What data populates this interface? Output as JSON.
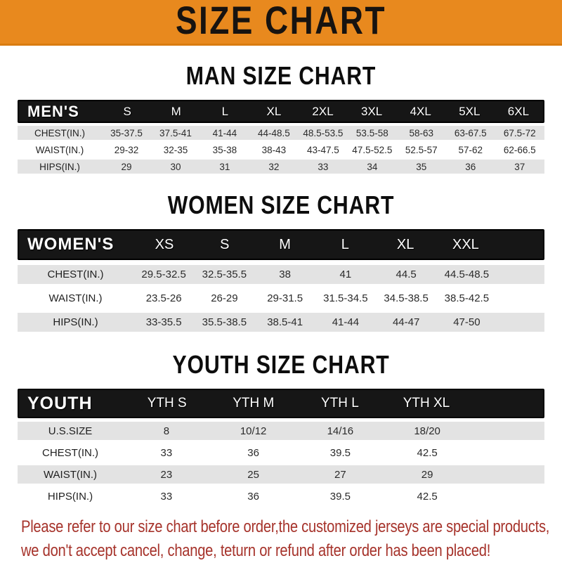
{
  "banner": {
    "title": "SIZE CHART",
    "bg_color": "#E8891E",
    "text_color": "#171310"
  },
  "colors": {
    "header_bar": "#161616",
    "stripe_row": "#E3E3E3",
    "table_text": "#2b2b2b"
  },
  "sections": [
    {
      "id": "men",
      "heading": "MAN SIZE CHART",
      "table": {
        "label": "MEN'S",
        "columns": [
          "S",
          "M",
          "L",
          "XL",
          "2XL",
          "3XL",
          "4XL",
          "5XL",
          "6XL"
        ],
        "rows": [
          {
            "label": "CHEST(IN.)",
            "values": [
              "35-37.5",
              "37.5-41",
              "41-44",
              "44-48.5",
              "48.5-53.5",
              "53.5-58",
              "58-63",
              "63-67.5",
              "67.5-72"
            ]
          },
          {
            "label": "WAIST(IN.)",
            "values": [
              "29-32",
              "32-35",
              "35-38",
              "38-43",
              "43-47.5",
              "47.5-52.5",
              "52.5-57",
              "57-62",
              "62-66.5"
            ]
          },
          {
            "label": "HIPS(IN.)",
            "values": [
              "29",
              "30",
              "31",
              "32",
              "33",
              "34",
              "35",
              "36",
              "37"
            ]
          }
        ]
      }
    },
    {
      "id": "women",
      "heading": "WOMEN SIZE CHART",
      "table": {
        "label": "WOMEN'S",
        "columns": [
          "XS",
          "S",
          "M",
          "L",
          "XL",
          "XXL"
        ],
        "rows": [
          {
            "label": "CHEST(IN.)",
            "values": [
              "29.5-32.5",
              "32.5-35.5",
              "38",
              "41",
              "44.5",
              "44.5-48.5"
            ]
          },
          {
            "label": "WAIST(IN.)",
            "values": [
              "23.5-26",
              "26-29",
              "29-31.5",
              "31.5-34.5",
              "34.5-38.5",
              "38.5-42.5"
            ]
          },
          {
            "label": "HIPS(IN.)",
            "values": [
              "33-35.5",
              "35.5-38.5",
              "38.5-41",
              "41-44",
              "44-47",
              "47-50"
            ]
          }
        ]
      }
    },
    {
      "id": "youth",
      "heading": "YOUTH SIZE CHART",
      "table": {
        "label": "YOUTH",
        "columns": [
          "YTH S",
          "YTH M",
          "YTH L",
          "YTH XL"
        ],
        "rows": [
          {
            "label": "U.S.SIZE",
            "values": [
              "8",
              "10/12",
              "14/16",
              "18/20"
            ]
          },
          {
            "label": "CHEST(IN.)",
            "values": [
              "33",
              "36",
              "39.5",
              "42.5"
            ]
          },
          {
            "label": "WAIST(IN.)",
            "values": [
              "23",
              "25",
              "27",
              "29"
            ]
          },
          {
            "label": "HIPS(IN.)",
            "values": [
              "33",
              "36",
              "39.5",
              "42.5"
            ]
          }
        ]
      }
    }
  ],
  "disclaimer": {
    "color": "#A6332B",
    "lines": [
      "Please refer to our size chart before order,the customized jerseys are special products,",
      "we don't accept cancel, change, teturn or refund after order has been placed!"
    ]
  }
}
